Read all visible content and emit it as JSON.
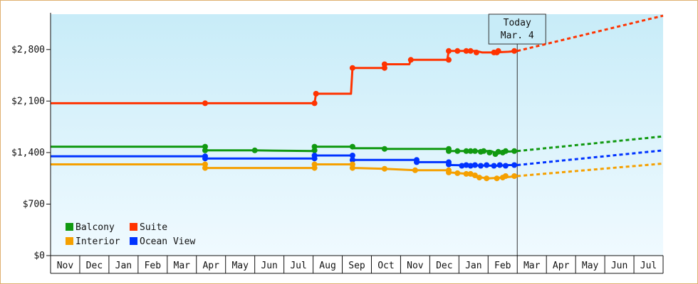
{
  "chart_data": {
    "type": "line",
    "title": "",
    "xlabel": "",
    "ylabel": "",
    "x_ticks": [
      "Nov",
      "Dec",
      "Jan",
      "Feb",
      "Mar",
      "Apr",
      "May",
      "Jun",
      "Jul",
      "Aug",
      "Sep",
      "Oct",
      "Nov",
      "Dec",
      "Jan",
      "Feb",
      "Mar",
      "Apr",
      "May",
      "Jun",
      "Jul"
    ],
    "x_range": [
      0,
      21
    ],
    "y_ticks": [
      "$0",
      "$700",
      "$1,400",
      "$2,100",
      "$2,800"
    ],
    "y_tick_values": [
      0,
      700,
      1400,
      2100,
      2800
    ],
    "ylim": [
      0,
      3280
    ],
    "today_month_index": 16,
    "today_label_line1": "Today",
    "today_label_line2": "Mar. 4",
    "legend_placement": "bottom-left",
    "grid": false,
    "series": [
      {
        "name": "Suite",
        "color": "#ff3300",
        "points": [
          [
            0,
            2070
          ],
          [
            5.3,
            2070
          ],
          [
            9.05,
            2070
          ],
          [
            9.1,
            2200
          ],
          [
            10.3,
            2200
          ],
          [
            10.35,
            2550
          ],
          [
            11.4,
            2550
          ],
          [
            11.45,
            2600
          ],
          [
            12.3,
            2600
          ],
          [
            12.35,
            2660
          ],
          [
            13.6,
            2660
          ],
          [
            13.65,
            2780
          ],
          [
            14.6,
            2780
          ],
          [
            14.8,
            2760
          ],
          [
            15.2,
            2760
          ],
          [
            15.7,
            2770
          ],
          [
            16.0,
            2780
          ]
        ],
        "markers": [
          [
            5.3,
            2070
          ],
          [
            9.05,
            2070
          ],
          [
            9.1,
            2200
          ],
          [
            10.35,
            2550
          ],
          [
            11.45,
            2600
          ],
          [
            11.45,
            2550
          ],
          [
            12.35,
            2660
          ],
          [
            13.65,
            2780
          ],
          [
            13.65,
            2660
          ],
          [
            13.95,
            2780
          ],
          [
            14.25,
            2780
          ],
          [
            14.4,
            2780
          ],
          [
            14.6,
            2760
          ],
          [
            15.2,
            2760
          ],
          [
            15.3,
            2760
          ],
          [
            15.35,
            2780
          ],
          [
            15.9,
            2780
          ]
        ],
        "forecast": [
          [
            16.0,
            2780
          ],
          [
            21.0,
            3260
          ]
        ]
      },
      {
        "name": "Balcony",
        "color": "#119911",
        "points": [
          [
            0,
            1480
          ],
          [
            5.3,
            1480
          ],
          [
            5.35,
            1430
          ],
          [
            7.0,
            1430
          ],
          [
            9.05,
            1420
          ],
          [
            9.1,
            1480
          ],
          [
            10.35,
            1480
          ],
          [
            10.4,
            1460
          ],
          [
            11.4,
            1460
          ],
          [
            11.45,
            1450
          ],
          [
            13.65,
            1450
          ],
          [
            13.7,
            1420
          ],
          [
            15.1,
            1420
          ],
          [
            15.3,
            1390
          ],
          [
            15.6,
            1410
          ],
          [
            16.0,
            1420
          ]
        ],
        "markers": [
          [
            5.3,
            1480
          ],
          [
            5.3,
            1430
          ],
          [
            7.0,
            1430
          ],
          [
            9.05,
            1480
          ],
          [
            9.05,
            1430
          ],
          [
            10.35,
            1480
          ],
          [
            11.45,
            1450
          ],
          [
            13.65,
            1450
          ],
          [
            13.65,
            1420
          ],
          [
            13.95,
            1420
          ],
          [
            14.25,
            1420
          ],
          [
            14.4,
            1420
          ],
          [
            14.55,
            1420
          ],
          [
            14.75,
            1410
          ],
          [
            14.85,
            1420
          ],
          [
            15.05,
            1400
          ],
          [
            15.25,
            1380
          ],
          [
            15.35,
            1410
          ],
          [
            15.5,
            1400
          ],
          [
            15.6,
            1420
          ],
          [
            15.9,
            1420
          ]
        ],
        "forecast": [
          [
            16.0,
            1420
          ],
          [
            21.0,
            1620
          ]
        ]
      },
      {
        "name": "Ocean View",
        "color": "#0033ff",
        "points": [
          [
            0,
            1350
          ],
          [
            5.3,
            1350
          ],
          [
            5.35,
            1320
          ],
          [
            9.05,
            1320
          ],
          [
            9.1,
            1360
          ],
          [
            10.35,
            1360
          ],
          [
            10.4,
            1300
          ],
          [
            12.5,
            1300
          ],
          [
            12.55,
            1270
          ],
          [
            13.6,
            1270
          ],
          [
            13.7,
            1230
          ],
          [
            15.4,
            1220
          ],
          [
            15.6,
            1230
          ],
          [
            16.0,
            1230
          ]
        ],
        "markers": [
          [
            5.3,
            1350
          ],
          [
            5.3,
            1320
          ],
          [
            9.05,
            1320
          ],
          [
            9.05,
            1360
          ],
          [
            10.35,
            1360
          ],
          [
            10.35,
            1300
          ],
          [
            12.55,
            1300
          ],
          [
            12.55,
            1270
          ],
          [
            13.65,
            1270
          ],
          [
            13.65,
            1240
          ],
          [
            14.1,
            1220
          ],
          [
            14.25,
            1230
          ],
          [
            14.4,
            1220
          ],
          [
            14.55,
            1230
          ],
          [
            14.75,
            1220
          ],
          [
            14.95,
            1230
          ],
          [
            15.2,
            1220
          ],
          [
            15.4,
            1230
          ],
          [
            15.6,
            1220
          ],
          [
            15.9,
            1230
          ]
        ],
        "forecast": [
          [
            16.0,
            1230
          ],
          [
            21.0,
            1430
          ]
        ]
      },
      {
        "name": "Interior",
        "color": "#f5a000",
        "points": [
          [
            0,
            1240
          ],
          [
            5.3,
            1240
          ],
          [
            5.35,
            1190
          ],
          [
            9.05,
            1190
          ],
          [
            9.1,
            1240
          ],
          [
            10.35,
            1240
          ],
          [
            10.4,
            1190
          ],
          [
            11.45,
            1180
          ],
          [
            12.5,
            1160
          ],
          [
            13.6,
            1160
          ],
          [
            13.7,
            1130
          ],
          [
            14.3,
            1110
          ],
          [
            14.6,
            1070
          ],
          [
            15.0,
            1050
          ],
          [
            15.5,
            1060
          ],
          [
            16.0,
            1080
          ]
        ],
        "markers": [
          [
            5.3,
            1240
          ],
          [
            5.3,
            1190
          ],
          [
            9.05,
            1190
          ],
          [
            9.05,
            1240
          ],
          [
            10.35,
            1240
          ],
          [
            10.35,
            1190
          ],
          [
            11.45,
            1180
          ],
          [
            12.5,
            1160
          ],
          [
            13.65,
            1160
          ],
          [
            13.65,
            1130
          ],
          [
            13.95,
            1120
          ],
          [
            14.25,
            1110
          ],
          [
            14.4,
            1110
          ],
          [
            14.55,
            1090
          ],
          [
            14.7,
            1060
          ],
          [
            14.95,
            1050
          ],
          [
            15.3,
            1050
          ],
          [
            15.5,
            1060
          ],
          [
            15.6,
            1080
          ],
          [
            15.9,
            1080
          ]
        ],
        "forecast": [
          [
            16.0,
            1080
          ],
          [
            21.0,
            1250
          ]
        ]
      }
    ],
    "legend": [
      {
        "name": "Balcony",
        "color": "#119911"
      },
      {
        "name": "Suite",
        "color": "#ff3300"
      },
      {
        "name": "Interior",
        "color": "#f5a000"
      },
      {
        "name": "Ocean View",
        "color": "#0033ff"
      }
    ]
  }
}
